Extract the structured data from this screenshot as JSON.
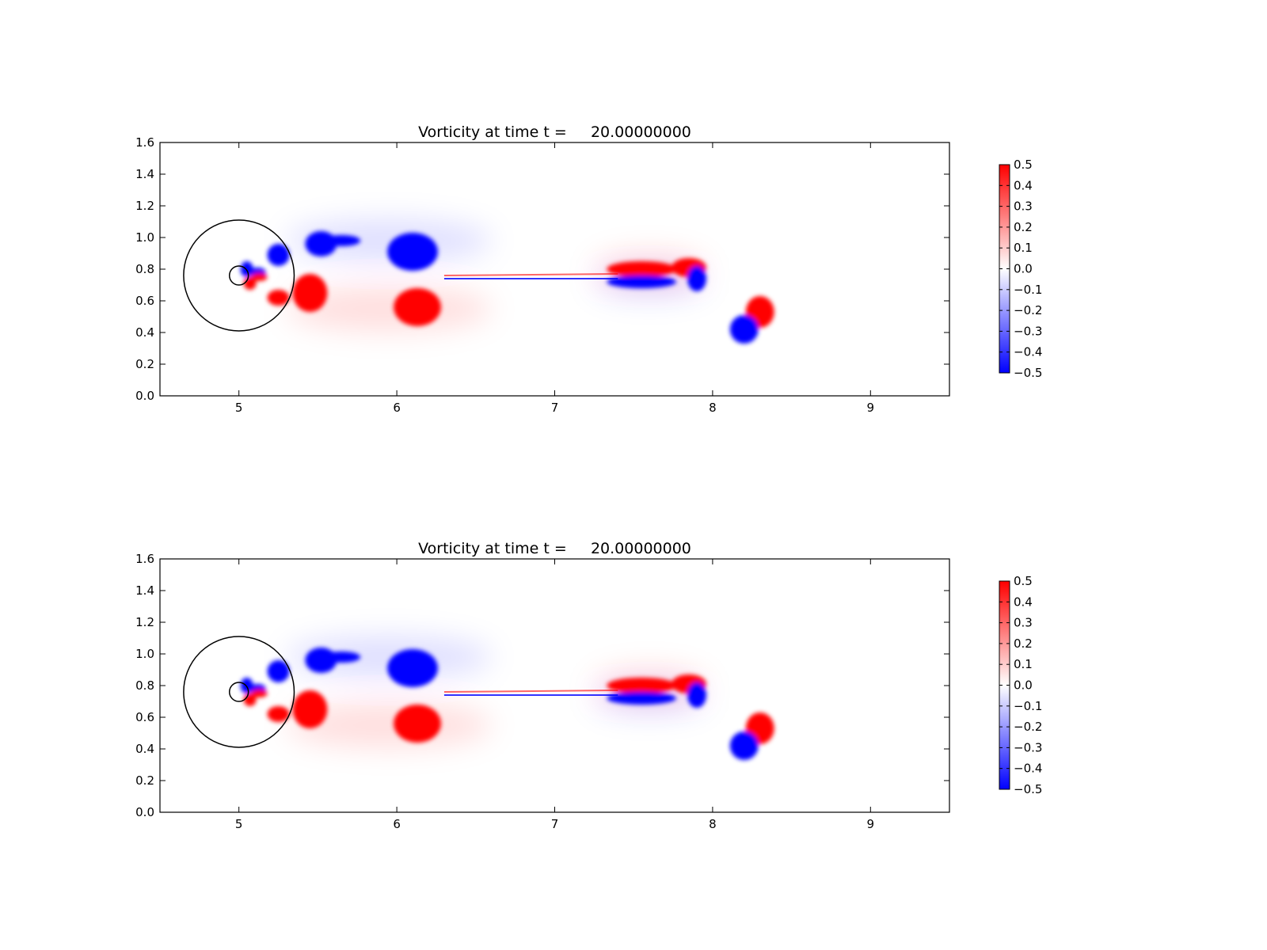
{
  "chart_data": [
    {
      "type": "heatmap",
      "title": "Vorticity at time t =     20.00000000",
      "xlabel": "",
      "ylabel": "",
      "xlim": [
        4.5,
        9.5
      ],
      "ylim": [
        0.0,
        1.6
      ],
      "xticks": [
        5,
        6,
        7,
        8,
        9
      ],
      "yticks": [
        0.0,
        0.2,
        0.4,
        0.6,
        0.8,
        1.0,
        1.2,
        1.4,
        1.6
      ],
      "colormap": "bwr",
      "colors": {
        "low": "#0000ff",
        "mid": "#ffffff",
        "high": "#ff0000"
      },
      "colorbar": {
        "range": [
          -0.5,
          0.5
        ],
        "ticks": [
          -0.5,
          -0.4,
          -0.3,
          -0.2,
          -0.1,
          0.0,
          0.1,
          0.2,
          0.3,
          0.4,
          0.5
        ],
        "placement": "right"
      },
      "circles": [
        {
          "center": [
            5.0,
            0.76
          ],
          "radius": 0.35
        },
        {
          "center": [
            5.0,
            0.76
          ],
          "radius": 0.06
        }
      ],
      "vortices": [
        {
          "x": 5.05,
          "y": 0.8,
          "rx": 0.04,
          "ry": 0.05,
          "value": -0.5
        },
        {
          "x": 5.12,
          "y": 0.78,
          "rx": 0.05,
          "ry": 0.03,
          "value": -0.5
        },
        {
          "x": 5.07,
          "y": 0.71,
          "rx": 0.04,
          "ry": 0.04,
          "value": 0.5
        },
        {
          "x": 5.13,
          "y": 0.75,
          "rx": 0.05,
          "ry": 0.025,
          "value": 0.5
        },
        {
          "x": 5.25,
          "y": 0.89,
          "rx": 0.07,
          "ry": 0.07,
          "value": -0.5
        },
        {
          "x": 5.25,
          "y": 0.62,
          "rx": 0.07,
          "ry": 0.05,
          "value": 0.5
        },
        {
          "x": 5.52,
          "y": 0.96,
          "rx": 0.1,
          "ry": 0.08,
          "value": -0.5
        },
        {
          "x": 5.65,
          "y": 0.98,
          "rx": 0.12,
          "ry": 0.035,
          "value": -0.5
        },
        {
          "x": 5.45,
          "y": 0.65,
          "rx": 0.11,
          "ry": 0.12,
          "value": 0.5
        },
        {
          "x": 6.1,
          "y": 0.91,
          "rx": 0.16,
          "ry": 0.12,
          "value": -0.5
        },
        {
          "x": 6.13,
          "y": 0.56,
          "rx": 0.15,
          "ry": 0.12,
          "value": 0.5
        },
        {
          "x": 7.55,
          "y": 0.8,
          "rx": 0.22,
          "ry": 0.05,
          "value": 0.5
        },
        {
          "x": 7.55,
          "y": 0.72,
          "rx": 0.22,
          "ry": 0.04,
          "value": -0.5
        },
        {
          "x": 7.85,
          "y": 0.81,
          "rx": 0.11,
          "ry": 0.06,
          "value": 0.5
        },
        {
          "x": 7.9,
          "y": 0.74,
          "rx": 0.06,
          "ry": 0.08,
          "value": -0.5
        },
        {
          "x": 8.3,
          "y": 0.53,
          "rx": 0.09,
          "ry": 0.1,
          "value": 0.5
        },
        {
          "x": 8.2,
          "y": 0.42,
          "rx": 0.09,
          "ry": 0.09,
          "value": -0.5
        }
      ]
    },
    {
      "type": "heatmap",
      "title": "Vorticity at time t =     20.00000000",
      "xlabel": "",
      "ylabel": "",
      "xlim": [
        4.5,
        9.5
      ],
      "ylim": [
        0.0,
        1.6
      ],
      "xticks": [
        5,
        6,
        7,
        8,
        9
      ],
      "yticks": [
        0.0,
        0.2,
        0.4,
        0.6,
        0.8,
        1.0,
        1.2,
        1.4,
        1.6
      ],
      "colormap": "bwr",
      "colors": {
        "low": "#0000ff",
        "mid": "#ffffff",
        "high": "#ff0000"
      },
      "colorbar": {
        "range": [
          -0.5,
          0.5
        ],
        "ticks": [
          -0.5,
          -0.4,
          -0.3,
          -0.2,
          -0.1,
          0.0,
          0.1,
          0.2,
          0.3,
          0.4,
          0.5
        ],
        "placement": "right"
      },
      "circles": [
        {
          "center": [
            5.0,
            0.76
          ],
          "radius": 0.35
        },
        {
          "center": [
            5.0,
            0.76
          ],
          "radius": 0.06
        }
      ],
      "vortices": [
        {
          "x": 5.05,
          "y": 0.8,
          "rx": 0.04,
          "ry": 0.05,
          "value": -0.5
        },
        {
          "x": 5.12,
          "y": 0.78,
          "rx": 0.05,
          "ry": 0.03,
          "value": -0.5
        },
        {
          "x": 5.07,
          "y": 0.71,
          "rx": 0.04,
          "ry": 0.04,
          "value": 0.5
        },
        {
          "x": 5.13,
          "y": 0.75,
          "rx": 0.05,
          "ry": 0.025,
          "value": 0.5
        },
        {
          "x": 5.25,
          "y": 0.89,
          "rx": 0.07,
          "ry": 0.07,
          "value": -0.5
        },
        {
          "x": 5.25,
          "y": 0.62,
          "rx": 0.07,
          "ry": 0.05,
          "value": 0.5
        },
        {
          "x": 5.52,
          "y": 0.96,
          "rx": 0.1,
          "ry": 0.08,
          "value": -0.5
        },
        {
          "x": 5.65,
          "y": 0.98,
          "rx": 0.12,
          "ry": 0.035,
          "value": -0.5
        },
        {
          "x": 5.45,
          "y": 0.65,
          "rx": 0.11,
          "ry": 0.12,
          "value": 0.5
        },
        {
          "x": 6.1,
          "y": 0.91,
          "rx": 0.16,
          "ry": 0.12,
          "value": -0.5
        },
        {
          "x": 6.13,
          "y": 0.56,
          "rx": 0.15,
          "ry": 0.12,
          "value": 0.5
        },
        {
          "x": 7.55,
          "y": 0.8,
          "rx": 0.22,
          "ry": 0.05,
          "value": 0.5
        },
        {
          "x": 7.55,
          "y": 0.72,
          "rx": 0.22,
          "ry": 0.04,
          "value": -0.5
        },
        {
          "x": 7.85,
          "y": 0.81,
          "rx": 0.11,
          "ry": 0.06,
          "value": 0.5
        },
        {
          "x": 7.9,
          "y": 0.74,
          "rx": 0.06,
          "ry": 0.08,
          "value": -0.5
        },
        {
          "x": 8.3,
          "y": 0.53,
          "rx": 0.09,
          "ry": 0.1,
          "value": 0.5
        },
        {
          "x": 8.2,
          "y": 0.42,
          "rx": 0.09,
          "ry": 0.09,
          "value": -0.5
        }
      ]
    }
  ]
}
